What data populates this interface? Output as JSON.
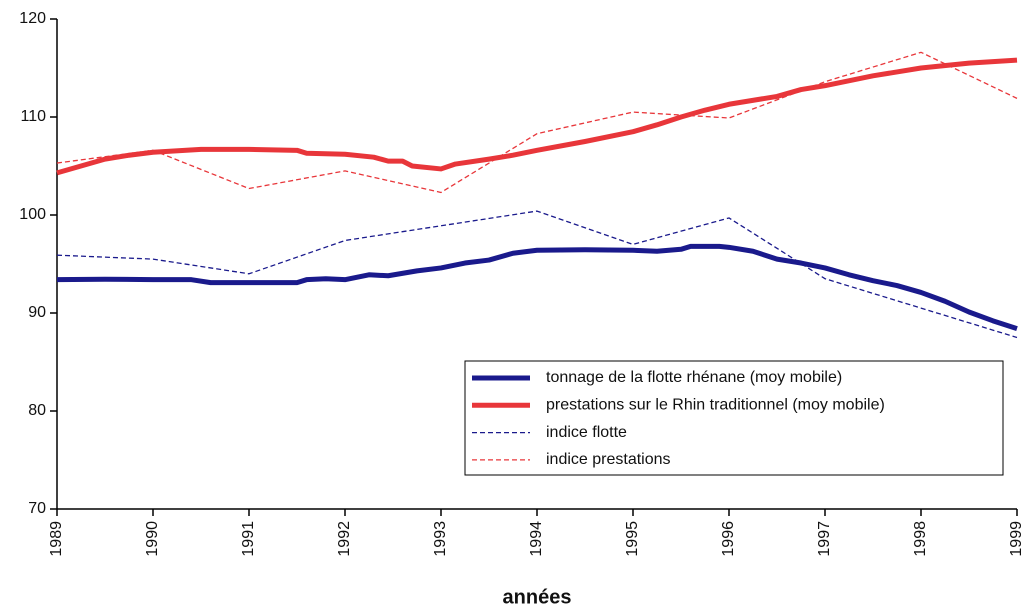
{
  "chart_data": {
    "type": "line",
    "xlabel": "années",
    "xlim": [
      1989,
      1999
    ],
    "xticks": [
      1989,
      1990,
      1991,
      1992,
      1993,
      1994,
      1995,
      1996,
      1997,
      1998,
      1999
    ],
    "ylim": [
      70,
      120
    ],
    "yticks": [
      70,
      80,
      90,
      100,
      110,
      120
    ],
    "grid": false,
    "legend": "lower right",
    "series": [
      {
        "name": "tonnage de la flotte rhénane (moy mobile)",
        "color": "#1a1a8c",
        "style": "solid",
        "width": 5,
        "x": [
          1989,
          1989.5,
          1990,
          1990.4,
          1990.6,
          1991,
          1991.5,
          1991.6,
          1991.8,
          1992,
          1992.25,
          1992.45,
          1992.75,
          1993,
          1993.25,
          1993.5,
          1993.75,
          1994,
          1994.5,
          1995,
          1995.25,
          1995.5,
          1995.6,
          1995.9,
          1996,
          1996.25,
          1996.5,
          1996.75,
          1997,
          1997.25,
          1997.5,
          1997.75,
          1998,
          1998.25,
          1998.5,
          1998.75,
          1999
        ],
        "values": [
          93.4,
          93.45,
          93.4,
          93.4,
          93.1,
          93.1,
          93.1,
          93.4,
          93.5,
          93.4,
          93.9,
          93.8,
          94.3,
          94.6,
          95.1,
          95.4,
          96.1,
          96.4,
          96.45,
          96.4,
          96.3,
          96.5,
          96.8,
          96.8,
          96.7,
          96.3,
          95.5,
          95.1,
          94.6,
          93.9,
          93.3,
          92.8,
          92.1,
          91.2,
          90.1,
          89.2,
          88.4
        ]
      },
      {
        "name": "prestations sur le Rhin traditionnel (moy mobile)",
        "color": "#e8363a",
        "style": "solid",
        "width": 5,
        "x": [
          1989,
          1989.25,
          1989.5,
          1989.75,
          1990,
          1990.5,
          1991,
          1991.5,
          1991.6,
          1992,
          1992.3,
          1992.45,
          1992.6,
          1992.7,
          1993,
          1993.15,
          1993.5,
          1993.75,
          1994,
          1994.5,
          1995,
          1995.25,
          1995.5,
          1995.75,
          1996,
          1996.5,
          1996.75,
          1997,
          1997.5,
          1997.75,
          1998,
          1998.5,
          1999
        ],
        "values": [
          104.3,
          105,
          105.7,
          106.1,
          106.4,
          106.7,
          106.7,
          106.6,
          106.3,
          106.2,
          105.9,
          105.5,
          105.5,
          105,
          104.7,
          105.2,
          105.7,
          106.1,
          106.6,
          107.5,
          108.5,
          109.2,
          110,
          110.7,
          111.3,
          112.1,
          112.8,
          113.2,
          114.2,
          114.6,
          115,
          115.5,
          115.8
        ]
      },
      {
        "name": "indice flotte",
        "color": "#1a1a8c",
        "style": "dashed",
        "width": 1.3,
        "x": [
          1989,
          1990,
          1991,
          1992,
          1993,
          1994,
          1995,
          1996,
          1997,
          1998,
          1999
        ],
        "values": [
          95.9,
          95.5,
          94,
          97.4,
          98.9,
          100.4,
          97,
          99.7,
          93.5,
          90.5,
          87.5
        ]
      },
      {
        "name": "indice prestations",
        "color": "#e8363a",
        "style": "dashed",
        "width": 1.3,
        "x": [
          1989,
          1990,
          1991,
          1992,
          1993,
          1994,
          1995,
          1996,
          1997,
          1998,
          1999
        ],
        "values": [
          105.3,
          106.6,
          102.7,
          104.5,
          102.3,
          108.3,
          110.5,
          109.9,
          113.6,
          116.6,
          111.9
        ]
      }
    ]
  }
}
